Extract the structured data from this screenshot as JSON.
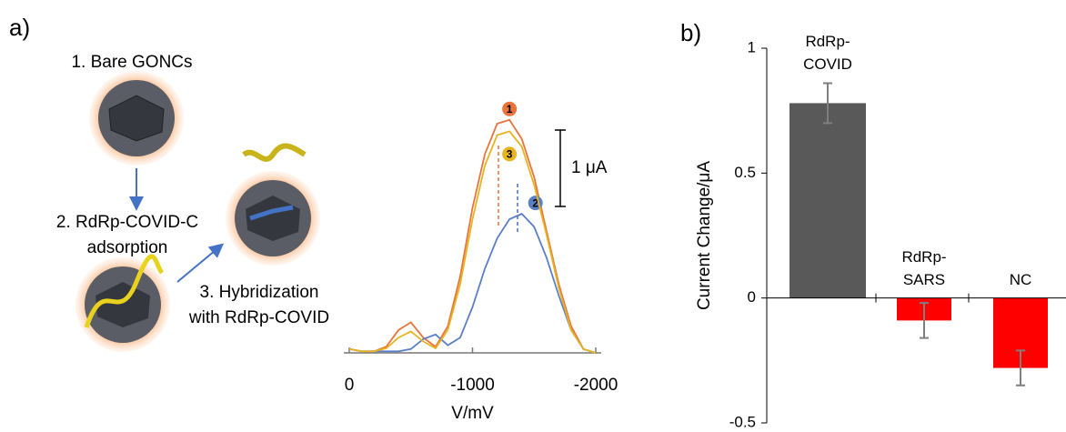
{
  "panel_labels": [
    "a)",
    "b)"
  ],
  "scheme": {
    "steps": [
      "1. Bare GONCs",
      "2. RdRp-COVID-C\nadsorption",
      "3. Hybridization\nwith RdRp-COVID"
    ]
  },
  "chart_data": [
    {
      "type": "line",
      "xlabel": "V/mV",
      "x": [
        0,
        -100,
        -200,
        -300,
        -400,
        -500,
        -600,
        -700,
        -800,
        -900,
        -1000,
        -1100,
        -1200,
        -1300,
        -1400,
        -1500,
        -1600,
        -1700,
        -1800,
        -1900,
        -2000
      ],
      "series": [
        {
          "label": "1",
          "color": "#e8743b",
          "values": [
            0.05,
            0.02,
            0.02,
            0.08,
            0.3,
            0.4,
            0.2,
            0.08,
            0.35,
            1.0,
            1.9,
            2.6,
            3.0,
            3.05,
            2.8,
            2.3,
            1.6,
            0.9,
            0.35,
            0.05,
            0
          ]
        },
        {
          "label": "2",
          "color": "#5b7fc4",
          "values": [
            0.05,
            0.02,
            0.02,
            0.02,
            0.02,
            0.05,
            0.18,
            0.24,
            0.1,
            0.2,
            0.6,
            1.1,
            1.5,
            1.75,
            1.82,
            1.65,
            1.25,
            0.75,
            0.3,
            0.05,
            0
          ]
        },
        {
          "label": "3",
          "color": "#e6b422",
          "values": [
            0.05,
            0.02,
            0.02,
            0.06,
            0.2,
            0.28,
            0.15,
            0.06,
            0.3,
            0.9,
            1.75,
            2.45,
            2.85,
            2.9,
            2.7,
            2.2,
            1.55,
            0.85,
            0.3,
            0.05,
            0
          ]
        }
      ],
      "xlim": [
        0,
        -2000
      ],
      "xticks": [
        0,
        -1000,
        -2000
      ],
      "ylim": [
        0,
        3.5
      ],
      "scale_bar": {
        "value": 1,
        "label": "1 μA"
      }
    },
    {
      "type": "bar",
      "ylabel": "Current Change/μA",
      "categories": [
        "RdRp-\nCOVID",
        "RdRp-\nSARS",
        "NC"
      ],
      "values": [
        0.78,
        -0.09,
        -0.28
      ],
      "errors": [
        0.08,
        0.07,
        0.07
      ],
      "colors": [
        "#595959",
        "#ff0000",
        "#ff0000"
      ],
      "ylim": [
        -0.5,
        1
      ],
      "yticks": [
        -0.5,
        0,
        0.5,
        1
      ]
    }
  ]
}
